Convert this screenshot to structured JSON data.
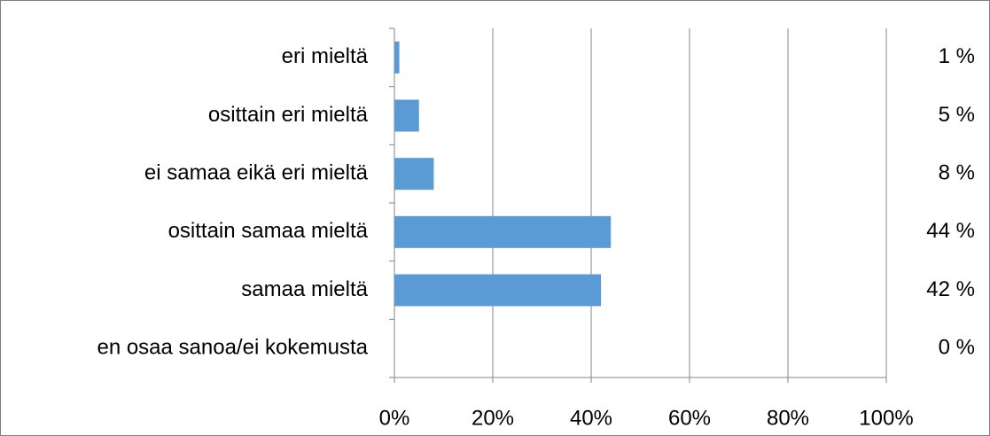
{
  "chart_data": {
    "type": "bar",
    "orientation": "horizontal",
    "categories": [
      "eri mieltä",
      "osittain eri mieltä",
      "ei samaa eikä eri mieltä",
      "osittain samaa mieltä",
      "samaa mieltä",
      "en osaa sanoa/ei kokemusta"
    ],
    "values": [
      1,
      5,
      8,
      44,
      42,
      0
    ],
    "value_labels": [
      "1 %",
      "5 %",
      "8 %",
      "44 %",
      "42 %",
      "0 %"
    ],
    "color": "#5b9bd5",
    "xlim": [
      0,
      100
    ],
    "xticks": [
      {
        "value": 0,
        "label": "0%"
      },
      {
        "value": 20,
        "label": "20%"
      },
      {
        "value": 40,
        "label": "40%"
      },
      {
        "value": 60,
        "label": "60%"
      },
      {
        "value": 80,
        "label": "80%"
      },
      {
        "value": 100,
        "label": "100%"
      }
    ],
    "grid": true
  }
}
